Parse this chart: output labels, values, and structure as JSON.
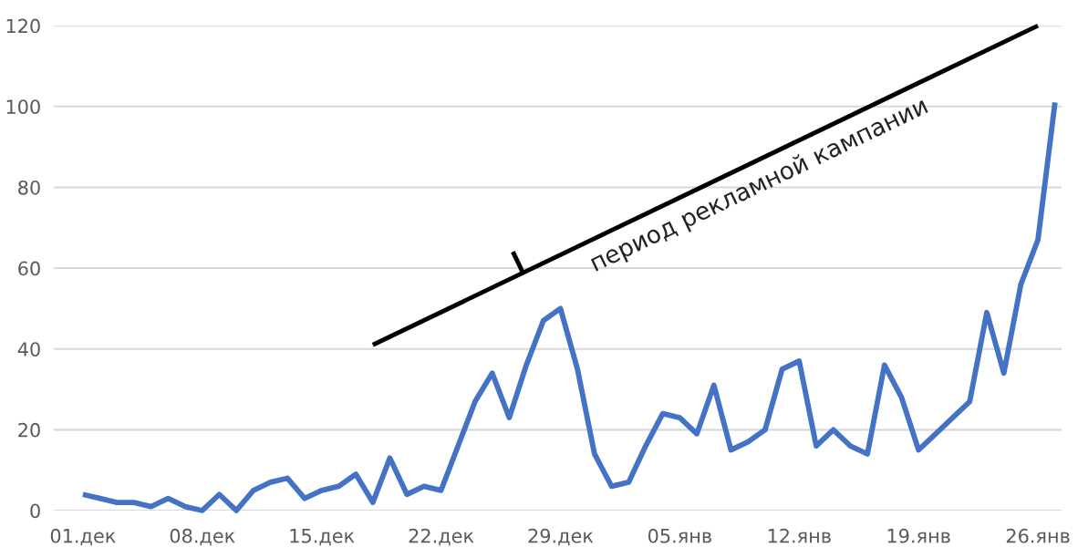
{
  "chart_data": {
    "type": "line",
    "categories": [
      "01.дек",
      null,
      null,
      null,
      null,
      null,
      null,
      "08.дек",
      null,
      null,
      null,
      null,
      null,
      null,
      "15.дек",
      null,
      null,
      null,
      null,
      null,
      null,
      "22.дек",
      null,
      null,
      null,
      null,
      null,
      null,
      "29.дек",
      null,
      null,
      null,
      null,
      null,
      null,
      "05.янв",
      null,
      null,
      null,
      null,
      null,
      null,
      "12.янв",
      null,
      null,
      null,
      null,
      null,
      null,
      "19.янв",
      null,
      null,
      null,
      null,
      null,
      null,
      "26.янв",
      null
    ],
    "series": [
      {
        "color": "#4472c4",
        "values": [
          4,
          3,
          2,
          2,
          1,
          3,
          1,
          0,
          4,
          0,
          5,
          7,
          8,
          3,
          5,
          6,
          9,
          2,
          13,
          4,
          6,
          5,
          16,
          27,
          34,
          23,
          36,
          47,
          50,
          35,
          14,
          6,
          7,
          16,
          24,
          23,
          19,
          31,
          15,
          17,
          20,
          35,
          37,
          16,
          20,
          16,
          14,
          36,
          28,
          15,
          19,
          23,
          27,
          49,
          34,
          56,
          67,
          101
        ]
      },
      {
        "type": "line",
        "color": "#000000",
        "values": [
          null,
          null,
          null,
          null,
          null,
          null,
          null,
          null,
          null,
          null,
          null,
          null,
          null,
          null,
          null,
          null,
          null,
          41,
          null,
          null,
          null,
          null,
          null,
          null,
          null,
          null,
          null,
          null,
          null,
          null,
          null,
          null,
          null,
          null,
          null,
          null,
          null,
          null,
          null,
          null,
          null,
          null,
          null,
          null,
          null,
          null,
          null,
          null,
          null,
          null,
          null,
          null,
          null,
          null,
          null,
          null,
          120,
          null
        ]
      }
    ],
    "ylim": [
      0,
      120
    ],
    "yticks": [
      0,
      20,
      40,
      60,
      80,
      100,
      120
    ],
    "grid": "y",
    "annotations": [
      "период рекламной кампании"
    ]
  }
}
